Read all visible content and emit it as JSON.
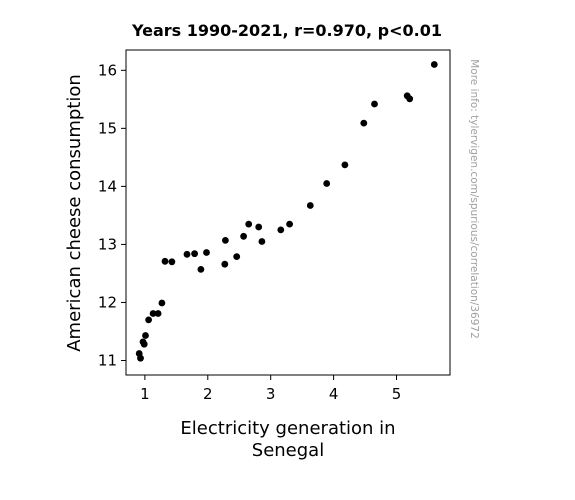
{
  "chart_data": {
    "type": "scatter",
    "title": "Years 1990-2021, r=0.970, p<0.01",
    "xlabel": [
      "Electricity generation in",
      "Senegal"
    ],
    "ylabel": "American cheese consumption",
    "side_note": "More info: tylervigen.com/spurious/correlation/36972",
    "xlim": [
      0.7,
      5.85
    ],
    "ylim": [
      10.75,
      16.35
    ],
    "xticks": [
      1,
      2,
      3,
      4,
      5
    ],
    "yticks": [
      11,
      12,
      13,
      14,
      15,
      16
    ],
    "grid": false,
    "marker_color": "#000000",
    "points": [
      {
        "x": 0.91,
        "y": 11.12
      },
      {
        "x": 0.93,
        "y": 11.04
      },
      {
        "x": 0.97,
        "y": 11.32
      },
      {
        "x": 0.99,
        "y": 11.28
      },
      {
        "x": 1.01,
        "y": 11.43
      },
      {
        "x": 1.06,
        "y": 11.7
      },
      {
        "x": 1.13,
        "y": 11.81
      },
      {
        "x": 1.21,
        "y": 11.81
      },
      {
        "x": 1.27,
        "y": 11.99
      },
      {
        "x": 1.32,
        "y": 12.71
      },
      {
        "x": 1.43,
        "y": 12.7
      },
      {
        "x": 1.67,
        "y": 12.83
      },
      {
        "x": 1.79,
        "y": 12.84
      },
      {
        "x": 1.89,
        "y": 12.57
      },
      {
        "x": 1.98,
        "y": 12.86
      },
      {
        "x": 2.27,
        "y": 12.66
      },
      {
        "x": 2.28,
        "y": 13.07
      },
      {
        "x": 2.46,
        "y": 12.79
      },
      {
        "x": 2.57,
        "y": 13.14
      },
      {
        "x": 2.65,
        "y": 13.35
      },
      {
        "x": 2.81,
        "y": 13.3
      },
      {
        "x": 2.86,
        "y": 13.05
      },
      {
        "x": 3.16,
        "y": 13.25
      },
      {
        "x": 3.3,
        "y": 13.35
      },
      {
        "x": 3.63,
        "y": 13.67
      },
      {
        "x": 3.89,
        "y": 14.05
      },
      {
        "x": 4.18,
        "y": 14.37
      },
      {
        "x": 4.48,
        "y": 15.09
      },
      {
        "x": 4.65,
        "y": 15.42
      },
      {
        "x": 5.17,
        "y": 15.56
      },
      {
        "x": 5.21,
        "y": 15.51
      },
      {
        "x": 5.6,
        "y": 16.1
      }
    ]
  }
}
